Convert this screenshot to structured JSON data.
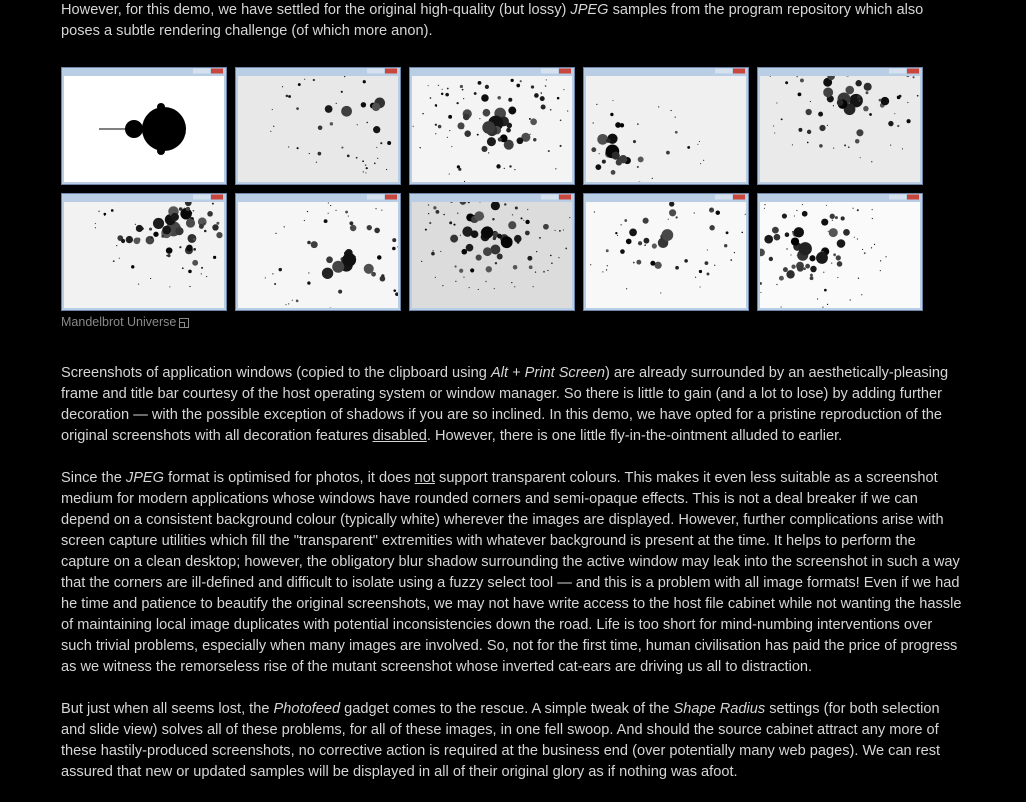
{
  "paragraphs": [
    [
      "However, for this demo, we have settled for the original high-quality (but lossy) ",
      "JPEG",
      " samples from the program repository which also poses a subtle rendering challenge (of which more anon)."
    ],
    [
      "Screenshots of application windows (copied to the clipboard using ",
      "Alt + Print Screen",
      ") are already surrounded by an aesthetically-pleasing frame and title bar courtesy of the host operating system or window manager. So there is little to gain (and a lot to lose) by adding further decoration — with the possible exception of shadows if you are so inclined. In this demo, we have opted for a pristine reproduction of the original screenshots with all decoration features ",
      "disabled",
      ". However, there is one little fly-in-the-ointment alluded to earlier."
    ],
    [
      "Since the ",
      "JPEG",
      " format is optimised for photos, it does ",
      "not",
      " support transparent colours. This makes it even less suitable as a screenshot medium for modern applications whose windows have rounded corners and semi-opaque effects. This is not a deal breaker if we can depend on a consistent background colour (typically white) wherever the images are displayed. However, further complications arise with screen capture utilities which fill the \"transparent\" extremities with whatever background is present at the time. It helps to perform the capture on a clean desktop; however, the obligatory blur shadow surrounding the active window may leak into the screenshot in such a way that the corners are ill-defined and difficult to isolate using a fuzzy select tool — and this is a problem with all image formats! Even if we had he time and patience to beautify the original screenshots, we may not have write access to the host file cabinet while not wanting the hassle of maintaining local image duplicates with potential inconsistencies down the road. Life is too short for mind-numbing interventions over such trivial problems, especially when many images are involved. So, not for the first time, human civilisation has paid the price of progress as we witness the remorseless rise of the mutant screenshot whose inverted cat-ears are driving us all to distraction."
    ],
    [
      "But just when all seems lost, the ",
      "Photofeed",
      " gadget comes to the rescue. A simple tweak of the ",
      "Shape Radius",
      " settings (for both selection and slide view) solves all of these problems, for all of these images, in one fell swoop. And should the source cabinet attract any more of these hastily-produced screenshots, no corrective action is required at the business end (over potentially many web pages). We can rest assured that new or updated samples will be displayed in all of their original glory as if nothing was afoot."
    ]
  ],
  "gallery": {
    "caption": "Mandelbrot Universe"
  }
}
